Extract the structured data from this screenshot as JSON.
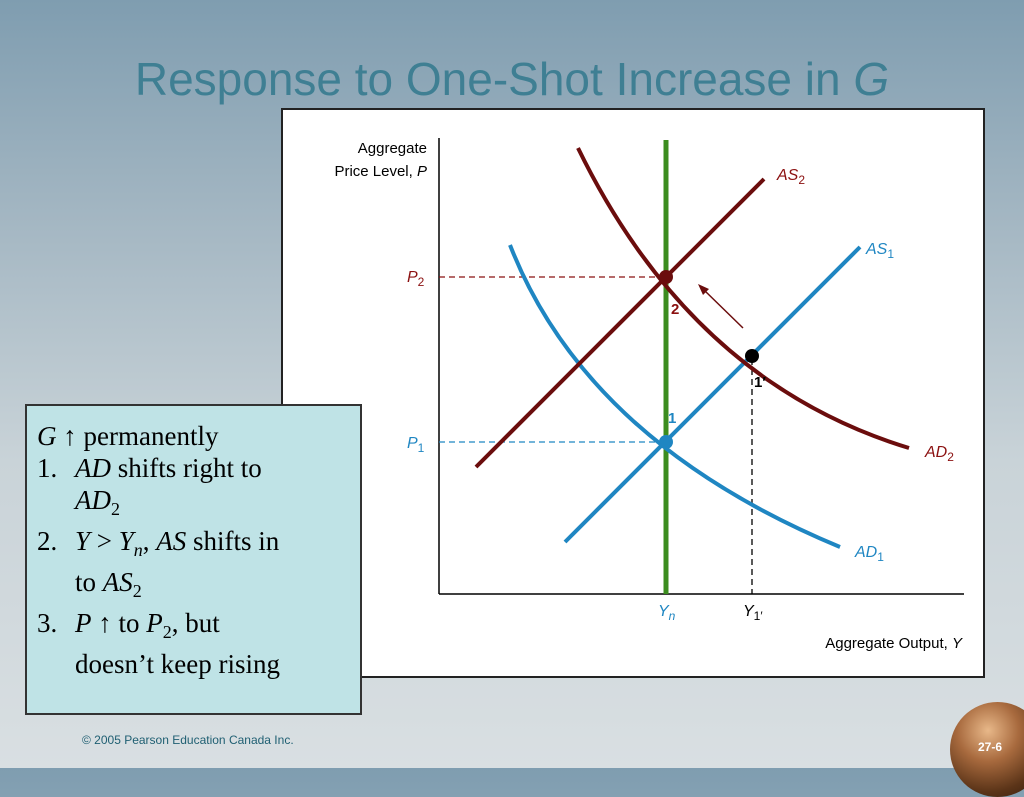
{
  "slide": {
    "title_main": "Response to One-Shot Increase in ",
    "title_var": "G",
    "copyright": "© 2005 Pearson Education Canada Inc.",
    "page_number": "27-6"
  },
  "graph": {
    "y_axis_label_line1": "Aggregate",
    "y_axis_label_line2": "Price Level, ",
    "y_axis_label_var": "P",
    "x_axis_label": "Aggregate Output, ",
    "x_axis_label_var": "Y",
    "curve_labels": {
      "as2_main": "AS",
      "as2_sub": "2",
      "as1_main": "AS",
      "as1_sub": "1",
      "ad2_main": "AD",
      "ad2_sub": "2",
      "ad1_main": "AD",
      "ad1_sub": "1"
    },
    "price_labels": {
      "p2_main": "P",
      "p2_sub": "2",
      "p1_main": "P",
      "p1_sub": "1"
    },
    "output_labels": {
      "yn_main": "Y",
      "yn_sub": "n",
      "y1_main": "Y",
      "y1_sub": "1′"
    },
    "point_labels": {
      "point1": "1",
      "point2": "2",
      "point1prime": "1′"
    },
    "colors": {
      "as2_ad2": "#6b0d0d",
      "as1_ad1": "#1f86c2",
      "long_run_supply": "#3c8d1f",
      "label_blue": "#1f86c2",
      "label_red": "#8b1010"
    }
  },
  "notes": {
    "line1_var": "G",
    "line1_arrow": "↑",
    "line1_text": " permanently",
    "item1_num": "1.",
    "item1_var": "AD",
    "item1_text": " shifts right to",
    "item1_cont_var": "AD",
    "item1_cont_sub": "2",
    "item2_num": "2.",
    "item2_y": "Y",
    "item2_gt": " > ",
    "item2_yn": "Y",
    "item2_yn_sub": "n",
    "item2_comma": ", ",
    "item2_as": "AS",
    "item2_text": " shifts in",
    "item2_cont_text": "to ",
    "item2_cont_var": "AS",
    "item2_cont_sub": "2",
    "item3_num": "3.",
    "item3_var": "P",
    "item3_arrow": " ↑",
    "item3_text1": " to ",
    "item3_p2": "P",
    "item3_p2_sub": "2",
    "item3_text2": ", but",
    "item3_cont_text": "doesn’t keep rising"
  }
}
